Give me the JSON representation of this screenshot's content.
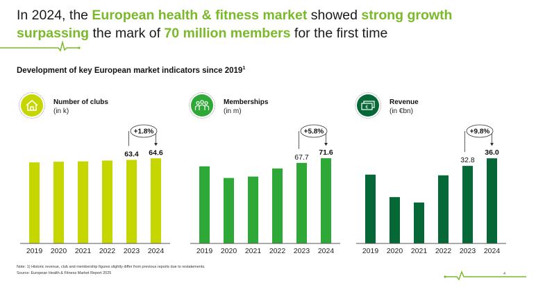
{
  "title": {
    "segments": [
      {
        "text": "In 2024, the ",
        "highlight": false
      },
      {
        "text": "European health & fitness market",
        "highlight": true
      },
      {
        "text": " showed ",
        "highlight": false
      },
      {
        "text": "strong growth surpassing",
        "highlight": true
      },
      {
        "text": " the mark of ",
        "highlight": false
      },
      {
        "text": "70 million members",
        "highlight": true
      },
      {
        "text": " for the first time",
        "highlight": false
      }
    ]
  },
  "subtitle": {
    "text": "Development of key European market indicators since 2019",
    "superscript": "1"
  },
  "colors": {
    "accent": "#7ab929",
    "clubs": "#c5d600",
    "memberships": "#2ea836",
    "revenue": "#066837"
  },
  "chart_data": [
    {
      "type": "bar",
      "title": "Number of clubs",
      "unit": "(in k)",
      "icon": "house-icon",
      "categories": [
        "2019",
        "2020",
        "2021",
        "2022",
        "2023",
        "2024"
      ],
      "values": [
        61.5,
        62.0,
        62.3,
        62.9,
        63.4,
        64.6
      ],
      "data_labels": [
        null,
        null,
        null,
        null,
        "63.4",
        "64.6"
      ],
      "bold_labels": [
        false,
        false,
        false,
        false,
        true,
        true
      ],
      "growth_label": "+1.8%",
      "xlabel": "",
      "ylabel": "",
      "ylim": [
        0,
        70
      ],
      "color": "#c5d600",
      "grid": false
    },
    {
      "type": "bar",
      "title": "Memberships",
      "unit": "(in m)",
      "icon": "people-icon",
      "categories": [
        "2019",
        "2020",
        "2021",
        "2022",
        "2023",
        "2024"
      ],
      "values": [
        64.8,
        55.0,
        56.2,
        63.0,
        67.7,
        71.6
      ],
      "data_labels": [
        null,
        null,
        null,
        null,
        "67.7",
        "71.6"
      ],
      "bold_labels": [
        false,
        false,
        false,
        false,
        false,
        true
      ],
      "growth_label": "+5.8%",
      "xlabel": "",
      "ylabel": "",
      "ylim": [
        0,
        77.5
      ],
      "color": "#2ea836",
      "grid": false
    },
    {
      "type": "bar",
      "title": "Revenue",
      "unit": "(in €bn)",
      "icon": "money-icon",
      "categories": [
        "2019",
        "2020",
        "2021",
        "2022",
        "2023",
        "2024"
      ],
      "values": [
        29.1,
        19.6,
        17.3,
        28.8,
        32.8,
        36.0
      ],
      "data_labels": [
        null,
        null,
        null,
        null,
        "32.8",
        "36.0"
      ],
      "bold_labels": [
        false,
        false,
        false,
        false,
        false,
        true
      ],
      "growth_label": "+9.8%",
      "xlabel": "",
      "ylabel": "",
      "ylim": [
        0,
        39
      ],
      "color": "#066837",
      "grid": false
    }
  ],
  "footnote": {
    "note": "Note: 1) Historic revenue, club and membership figures slightly differ from previous reports due to restatements.",
    "source": "Source: European Health & Fitness Market Report 2025"
  },
  "page_number": "4"
}
